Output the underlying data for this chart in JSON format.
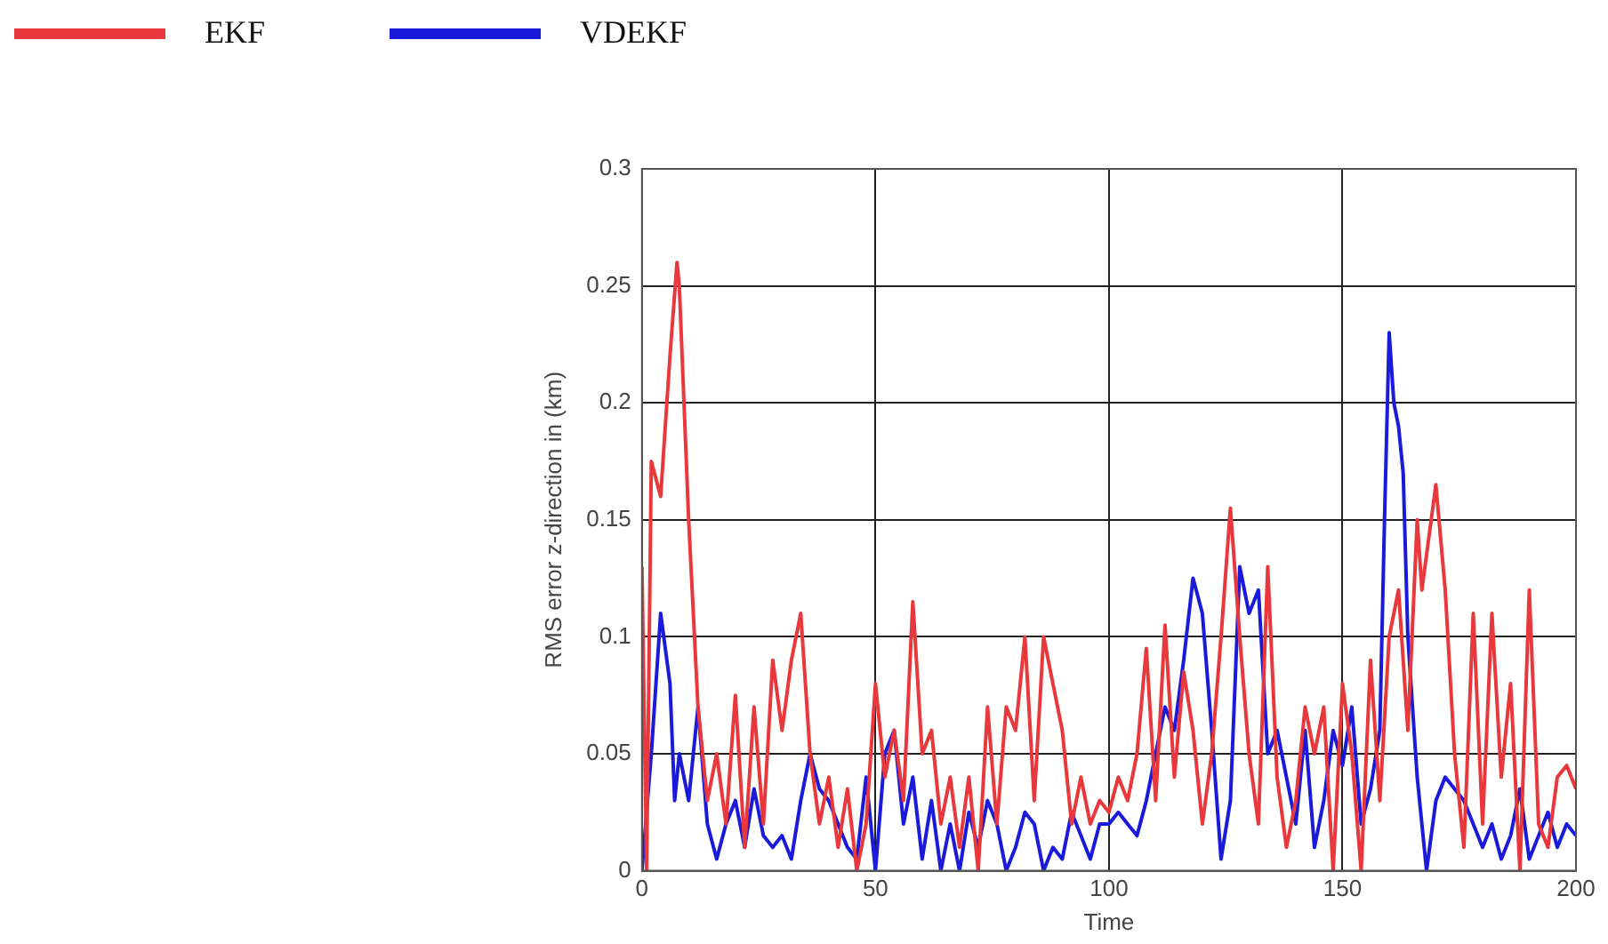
{
  "chart_data": {
    "type": "line",
    "xlabel": "Time",
    "ylabel": "RMS error z-direction in (km)",
    "xlim": [
      0,
      200
    ],
    "xticks": [
      0,
      50,
      100,
      150,
      200
    ],
    "ylim": [
      0,
      0.3
    ],
    "yticks": [
      0,
      0.05,
      0.1,
      0.15,
      0.2,
      0.25,
      0.3
    ],
    "grid": true,
    "legend": "top left",
    "marker": "none",
    "line_style": "solid",
    "series": [
      {
        "name": "EKF",
        "color": "#e8383c",
        "x": [
          0,
          1,
          2,
          4,
          6,
          7.5,
          8,
          10,
          12,
          14,
          16,
          18,
          20,
          22,
          24,
          26,
          28,
          30,
          32,
          34,
          36,
          38,
          40,
          42,
          44,
          46,
          48,
          50,
          52,
          54,
          56,
          58,
          60,
          62,
          64,
          66,
          68,
          70,
          72,
          74,
          76,
          78,
          80,
          82,
          84,
          86,
          88,
          90,
          92,
          94,
          96,
          98,
          100,
          102,
          104,
          106,
          108,
          110,
          112,
          114,
          116,
          118,
          120,
          122,
          124,
          126,
          128,
          130,
          132,
          134,
          136,
          138,
          140,
          142,
          144,
          146,
          148,
          150,
          152,
          154,
          156,
          158,
          160,
          162,
          164,
          166,
          167,
          170,
          172,
          174,
          176,
          178,
          180,
          182,
          184,
          186,
          188,
          190,
          192,
          194,
          196,
          198,
          200
        ],
        "values": [
          0.13,
          0,
          0.175,
          0.16,
          0.22,
          0.26,
          0.25,
          0.15,
          0.07,
          0.03,
          0.05,
          0.02,
          0.075,
          0.01,
          0.07,
          0.02,
          0.09,
          0.06,
          0.09,
          0.11,
          0.05,
          0.02,
          0.04,
          0.01,
          0.035,
          0,
          0.02,
          0.08,
          0.04,
          0.06,
          0.03,
          0.115,
          0.05,
          0.06,
          0.02,
          0.04,
          0.01,
          0.04,
          0,
          0.07,
          0.02,
          0.07,
          0.06,
          0.1,
          0.03,
          0.1,
          0.08,
          0.06,
          0.02,
          0.04,
          0.02,
          0.03,
          0.025,
          0.04,
          0.03,
          0.05,
          0.095,
          0.03,
          0.105,
          0.04,
          0.085,
          0.06,
          0.02,
          0.05,
          0.1,
          0.155,
          0.1,
          0.05,
          0.02,
          0.13,
          0.04,
          0.01,
          0.03,
          0.07,
          0.05,
          0.07,
          0,
          0.08,
          0.05,
          0,
          0.09,
          0.03,
          0.1,
          0.12,
          0.06,
          0.15,
          0.12,
          0.165,
          0.12,
          0.05,
          0.01,
          0.11,
          0.02,
          0.11,
          0.04,
          0.08,
          0,
          0.12,
          0.02,
          0.01,
          0.04,
          0.045,
          0.035
        ]
      },
      {
        "name": "VDEKF",
        "color": "#1a1adb",
        "x": [
          0,
          2,
          4,
          6,
          7,
          8,
          10,
          12,
          14,
          16,
          18,
          20,
          22,
          24,
          26,
          28,
          30,
          32,
          34,
          36,
          38,
          40,
          42,
          44,
          46,
          48,
          50,
          52,
          54,
          56,
          58,
          60,
          62,
          64,
          66,
          68,
          70,
          72,
          74,
          76,
          78,
          80,
          82,
          84,
          86,
          88,
          90,
          92,
          94,
          96,
          98,
          100,
          102,
          104,
          106,
          108,
          110,
          112,
          114,
          116,
          118,
          120,
          122,
          124,
          126,
          128,
          130,
          132,
          134,
          136,
          138,
          140,
          142,
          144,
          146,
          148,
          150,
          152,
          154,
          156,
          158,
          159,
          160,
          161,
          162,
          163,
          164,
          166,
          168,
          170,
          172,
          174,
          176,
          178,
          180,
          182,
          184,
          186,
          188,
          190,
          192,
          194,
          196,
          198,
          200
        ],
        "values": [
          0,
          0.05,
          0.11,
          0.08,
          0.03,
          0.05,
          0.03,
          0.07,
          0.02,
          0.005,
          0.02,
          0.03,
          0.01,
          0.035,
          0.015,
          0.01,
          0.015,
          0.005,
          0.03,
          0.05,
          0.035,
          0.03,
          0.02,
          0.01,
          0.005,
          0.04,
          0,
          0.05,
          0.06,
          0.02,
          0.04,
          0.005,
          0.03,
          0,
          0.02,
          0,
          0.025,
          0.01,
          0.03,
          0.02,
          0,
          0.01,
          0.025,
          0.02,
          0,
          0.01,
          0.005,
          0.025,
          0.015,
          0.005,
          0.02,
          0.02,
          0.025,
          0.02,
          0.015,
          0.03,
          0.05,
          0.07,
          0.06,
          0.09,
          0.125,
          0.11,
          0.06,
          0.005,
          0.03,
          0.13,
          0.11,
          0.12,
          0.05,
          0.06,
          0.04,
          0.02,
          0.06,
          0.01,
          0.03,
          0.06,
          0.045,
          0.07,
          0.02,
          0.035,
          0.06,
          0.15,
          0.23,
          0.2,
          0.19,
          0.17,
          0.1,
          0.04,
          0,
          0.03,
          0.04,
          0.035,
          0.03,
          0.02,
          0.01,
          0.02,
          0.005,
          0.015,
          0.035,
          0.005,
          0.015,
          0.025,
          0.01,
          0.02,
          0.015
        ]
      }
    ]
  }
}
